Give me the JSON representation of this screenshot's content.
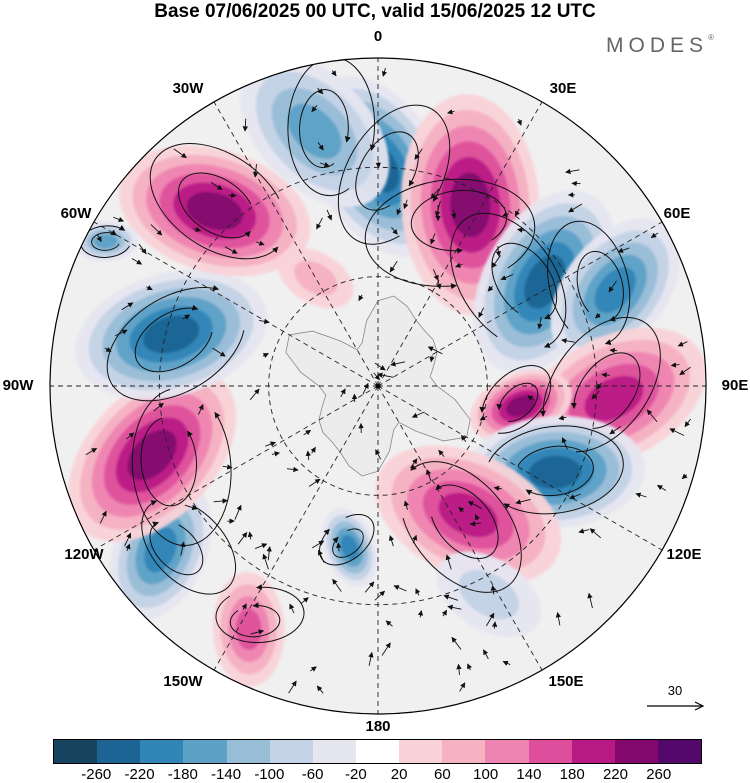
{
  "title": "Base 07/06/2025 00 UTC, valid 15/06/2025 12 UTC",
  "brand": {
    "name": "MODES",
    "mark": "®"
  },
  "longitude_labels": [
    "0",
    "30E",
    "60E",
    "90E",
    "120E",
    "150E",
    "180",
    "150W",
    "120W",
    "90W",
    "60W",
    "30W"
  ],
  "reference_vector": {
    "value": "30"
  },
  "colorbar": {
    "ticks": [
      "-260",
      "-220",
      "-180",
      "-140",
      "-100",
      "-60",
      "-20",
      "20",
      "60",
      "100",
      "140",
      "180",
      "220",
      "260"
    ],
    "colors": [
      "#16435e",
      "#1c6493",
      "#2f86b7",
      "#5ea1c7",
      "#98bdd7",
      "#c4d3e6",
      "#e6e6f1",
      "#ffffff",
      "#f9d3d8",
      "#f6b1c2",
      "#ee84b1",
      "#dd4f9c",
      "#b81a85",
      "#82086e",
      "#54086b"
    ]
  },
  "anomaly_centers": [
    {
      "lon": 0,
      "colat": 0.67,
      "r": 0.24,
      "val": -240
    },
    {
      "lon": 27,
      "colat": 0.62,
      "r": 0.27,
      "val": 240
    },
    {
      "lon": 58,
      "colat": 0.6,
      "r": 0.24,
      "val": -250
    },
    {
      "lon": 68,
      "colat": 0.78,
      "r": 0.2,
      "val": -200
    },
    {
      "lon": 93,
      "colat": 0.72,
      "r": 0.24,
      "val": 200
    },
    {
      "lon": 98,
      "colat": 0.44,
      "r": 0.13,
      "val": 240
    },
    {
      "lon": 116,
      "colat": 0.6,
      "r": 0.22,
      "val": -250
    },
    {
      "lon": 145,
      "colat": 0.48,
      "r": 0.24,
      "val": 200
    },
    {
      "lon": 152,
      "colat": 0.72,
      "r": 0.14,
      "val": -80
    },
    {
      "lon": -170,
      "colat": 0.5,
      "r": 0.1,
      "val": -200
    },
    {
      "lon": -152,
      "colat": 0.84,
      "r": 0.14,
      "val": 140
    },
    {
      "lon": -127,
      "colat": 0.83,
      "r": 0.18,
      "val": -200
    },
    {
      "lon": -107,
      "colat": 0.72,
      "r": 0.25,
      "val": 250
    },
    {
      "lon": -76,
      "colat": 0.65,
      "r": 0.24,
      "val": -250
    },
    {
      "lon": -43,
      "colat": 0.73,
      "r": 0.24,
      "val": 250
    },
    {
      "lon": -14,
      "colat": 0.8,
      "r": 0.22,
      "val": -160
    },
    {
      "lon": -62,
      "colat": 0.94,
      "r": 0.08,
      "val": -140
    },
    {
      "lon": -30,
      "colat": 0.38,
      "r": 0.1,
      "val": 60
    }
  ]
}
